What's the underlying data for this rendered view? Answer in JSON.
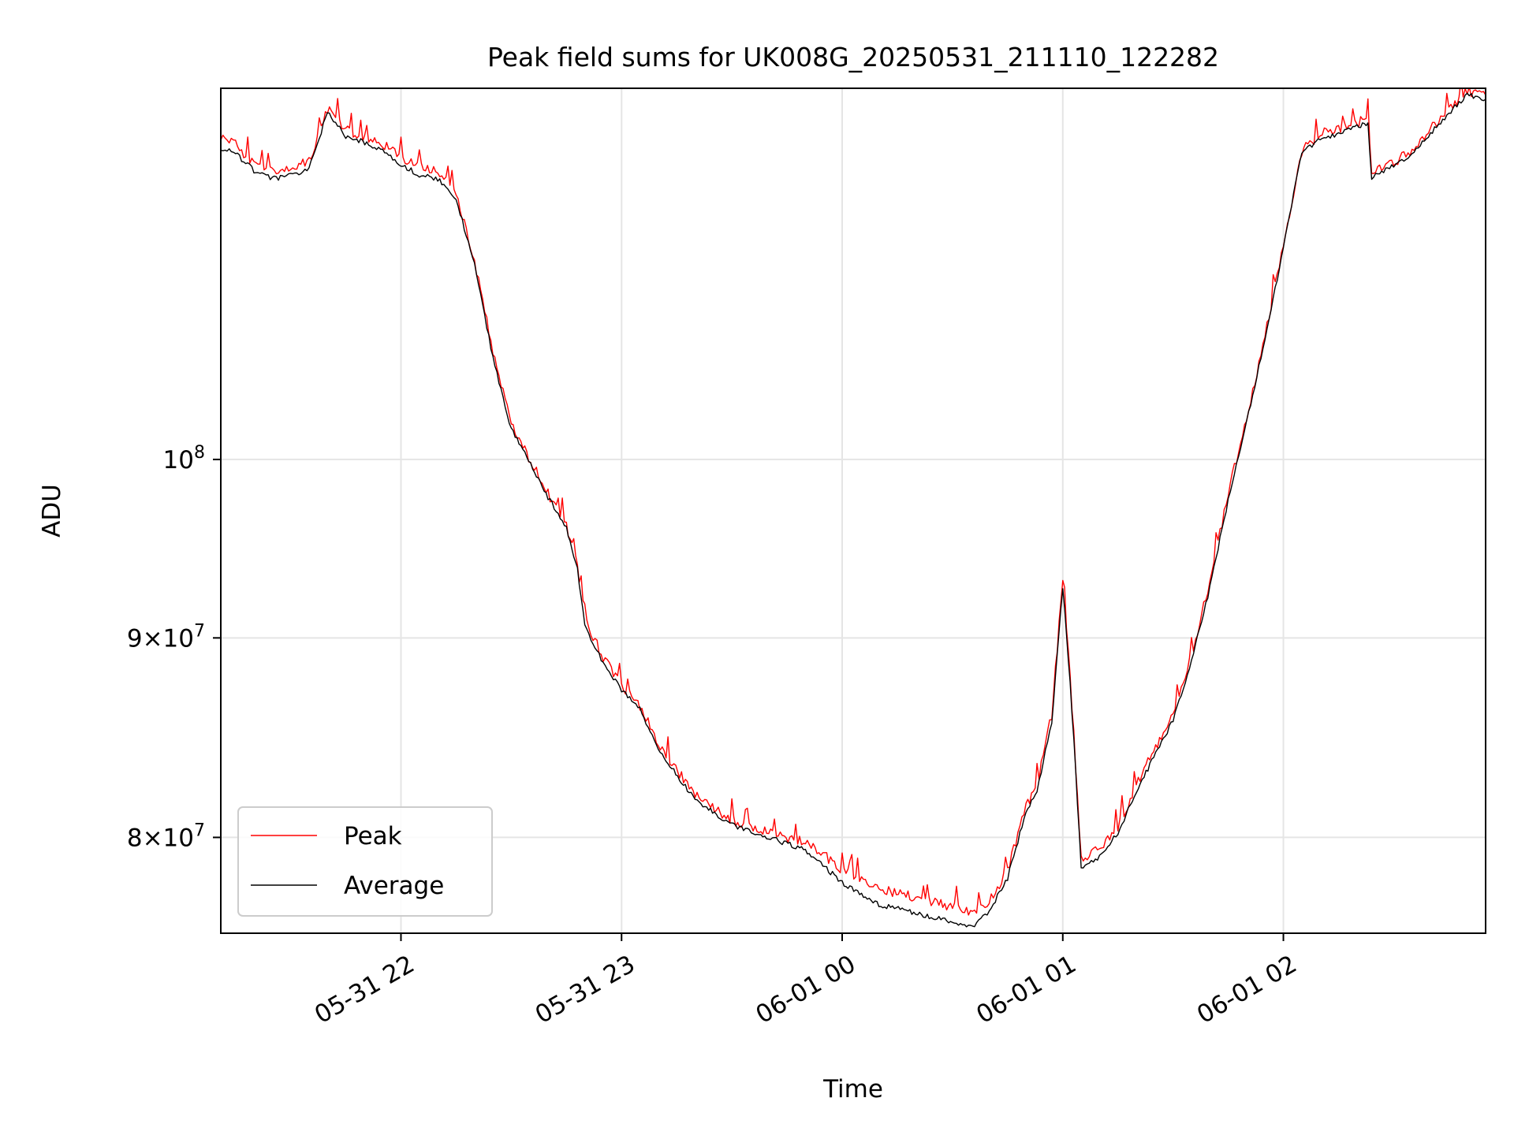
{
  "chart_data": {
    "type": "line",
    "title": "Peak field sums for UK008G_20250531_211110_122282",
    "xlabel": "Time",
    "ylabel": "ADU",
    "yscale": "log",
    "xlim": [
      "2025-05-31 21:11",
      "2025-06-01 02:55"
    ],
    "ylim": [
      75600000,
      124500000
    ],
    "x_ticks": [
      "05-31 22",
      "05-31 23",
      "06-01 00",
      "06-01 01",
      "06-01 02"
    ],
    "y_ticks": [
      {
        "value": 80000000,
        "mantissa": "8",
        "exponent": "7"
      },
      {
        "value": 90000000,
        "mantissa": "9",
        "exponent": "7"
      },
      {
        "value": 100000000,
        "mantissa": "",
        "exponent": "8"
      }
    ],
    "grid": true,
    "legend": "lower-left",
    "series": [
      {
        "name": "Peak",
        "color": "#ff0000",
        "x": [
          "05-31 21:11",
          "05-31 21:15",
          "05-31 21:20",
          "05-31 21:25",
          "05-31 21:30",
          "05-31 21:35",
          "05-31 21:40",
          "05-31 21:45",
          "05-31 21:48",
          "05-31 21:55",
          "05-31 22:00",
          "05-31 22:05",
          "05-31 22:10",
          "05-31 22:15",
          "05-31 22:20",
          "05-31 22:25",
          "05-31 22:30",
          "05-31 22:40",
          "05-31 22:45",
          "05-31 22:48",
          "05-31 22:50",
          "05-31 22:55",
          "05-31 23:00",
          "05-31 23:05",
          "05-31 23:10",
          "05-31 23:20",
          "05-31 23:30",
          "05-31 23:40",
          "05-31 23:50",
          "06-01 00:00",
          "06-01 00:10",
          "06-01 00:20",
          "06-01 00:30",
          "06-01 00:36",
          "06-01 00:40",
          "06-01 00:45",
          "06-01 00:50",
          "06-01 00:53",
          "06-01 00:57",
          "06-01 01:00",
          "06-01 01:02",
          "06-01 01:05",
          "06-01 01:10",
          "06-01 01:15",
          "06-01 01:20",
          "06-01 01:30",
          "06-01 01:35",
          "06-01 01:40",
          "06-01 01:45",
          "06-01 01:50",
          "06-01 01:55",
          "06-01 02:00",
          "06-01 02:05",
          "06-01 02:10",
          "06-01 02:15",
          "06-01 02:20",
          "06-01 02:23",
          "06-01 02:24",
          "06-01 02:30",
          "06-01 02:35",
          "06-01 02:40",
          "06-01 02:45",
          "06-01 02:50",
          "06-01 02:55"
        ],
        "values": [
          121000000,
          120500000,
          119000000,
          118500000,
          118800000,
          119200000,
          123000000,
          121500000,
          121200000,
          120500000,
          119500000,
          118800000,
          118500000,
          117000000,
          112500000,
          106500000,
          102000000,
          98000000,
          96200000,
          94000000,
          91000000,
          89000000,
          87500000,
          86500000,
          84500000,
          82000000,
          80800000,
          80200000,
          79800000,
          78500000,
          77600000,
          77200000,
          76800000,
          76500000,
          77000000,
          78500000,
          81500000,
          82500000,
          86000000,
          93000000,
          88000000,
          79000000,
          79500000,
          80500000,
          82500000,
          86000000,
          89000000,
          93000000,
          98000000,
          102500000,
          107500000,
          113500000,
          120000000,
          121200000,
          121500000,
          122000000,
          122300000,
          118500000,
          119200000,
          120000000,
          121500000,
          123000000,
          124300000,
          124000000
        ]
      },
      {
        "name": "Average",
        "color": "#000000",
        "x": [
          "05-31 21:11",
          "05-31 21:15",
          "05-31 21:20",
          "05-31 21:25",
          "05-31 21:30",
          "05-31 21:35",
          "05-31 21:40",
          "05-31 21:45",
          "05-31 21:48",
          "05-31 21:55",
          "05-31 22:00",
          "05-31 22:05",
          "05-31 22:10",
          "05-31 22:15",
          "05-31 22:20",
          "05-31 22:25",
          "05-31 22:30",
          "05-31 22:40",
          "05-31 22:45",
          "05-31 22:48",
          "05-31 22:50",
          "05-31 22:55",
          "05-31 23:00",
          "05-31 23:05",
          "05-31 23:10",
          "05-31 23:20",
          "05-31 23:30",
          "05-31 23:40",
          "05-31 23:50",
          "06-01 00:00",
          "06-01 00:10",
          "06-01 00:20",
          "06-01 00:30",
          "06-01 00:36",
          "06-01 00:40",
          "06-01 00:45",
          "06-01 00:50",
          "06-01 00:53",
          "06-01 00:57",
          "06-01 01:00",
          "06-01 01:02",
          "06-01 01:05",
          "06-01 01:10",
          "06-01 01:15",
          "06-01 01:20",
          "06-01 01:30",
          "06-01 01:35",
          "06-01 01:40",
          "06-01 01:45",
          "06-01 01:50",
          "06-01 01:55",
          "06-01 02:00",
          "06-01 02:05",
          "06-01 02:10",
          "06-01 02:15",
          "06-01 02:20",
          "06-01 02:23",
          "06-01 02:24",
          "06-01 02:30",
          "06-01 02:35",
          "06-01 02:40",
          "06-01 02:45",
          "06-01 02:50",
          "06-01 02:55"
        ],
        "values": [
          120200000,
          119800000,
          118600000,
          118000000,
          118300000,
          118700000,
          122700000,
          121000000,
          120800000,
          120000000,
          119000000,
          118300000,
          118000000,
          116600000,
          112200000,
          106200000,
          101800000,
          97800000,
          96000000,
          93700000,
          90600000,
          88700000,
          87300000,
          86300000,
          84200000,
          81800000,
          80600000,
          80000000,
          79400000,
          77900000,
          76900000,
          76500000,
          76100000,
          75900000,
          76600000,
          78100000,
          81200000,
          82200000,
          85600000,
          92700000,
          87700000,
          78600000,
          79100000,
          80200000,
          82200000,
          85700000,
          88700000,
          92700000,
          97600000,
          102200000,
          107300000,
          113300000,
          119800000,
          120900000,
          121200000,
          121700000,
          122000000,
          118100000,
          118900000,
          119700000,
          121200000,
          122700000,
          124000000,
          123700000
        ]
      }
    ]
  }
}
